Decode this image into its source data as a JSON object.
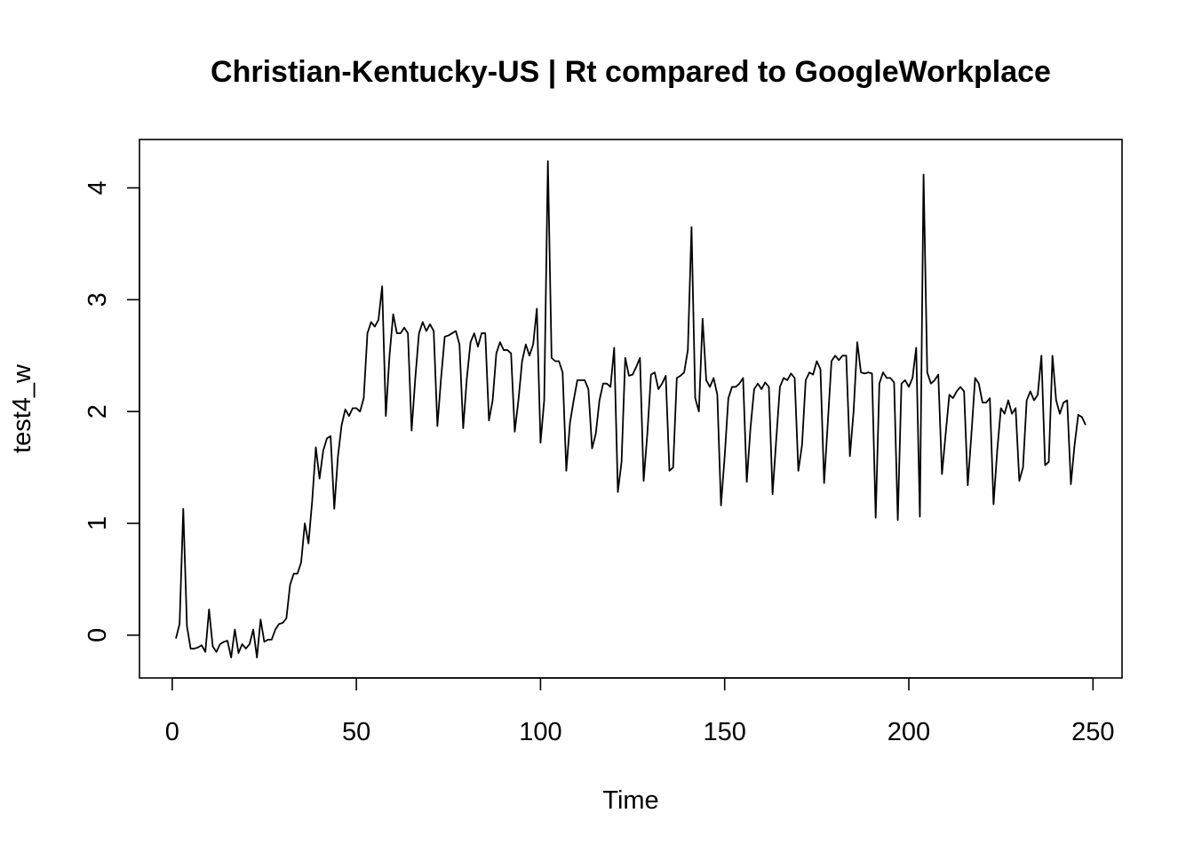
{
  "chart_data": {
    "type": "line",
    "title": "Christian-Kentucky-US | Rt compared to GoogleWorkplace",
    "xlabel": "Time",
    "ylabel": "test4_w",
    "xlim": [
      1,
      248
    ],
    "ylim": [
      -0.2,
      4.25
    ],
    "x_ticks": [
      0,
      50,
      100,
      150,
      200,
      250
    ],
    "y_ticks": [
      0,
      1,
      2,
      3,
      4
    ],
    "grid": false,
    "legend": "none",
    "line_color": "#000000",
    "series": [
      {
        "x_start": 1,
        "x_step": 1,
        "values": [
          -0.03,
          0.1,
          1.13,
          0.08,
          -0.12,
          -0.12,
          -0.11,
          -0.09,
          -0.15,
          0.23,
          -0.1,
          -0.15,
          -0.08,
          -0.06,
          -0.05,
          -0.2,
          0.05,
          -0.16,
          -0.08,
          -0.12,
          -0.08,
          0.05,
          -0.2,
          0.14,
          -0.06,
          -0.04,
          -0.04,
          0.05,
          0.1,
          0.11,
          0.15,
          0.45,
          0.55,
          0.55,
          0.65,
          1.0,
          0.82,
          1.2,
          1.68,
          1.4,
          1.65,
          1.76,
          1.78,
          1.13,
          1.6,
          1.88,
          2.02,
          1.96,
          2.03,
          2.03,
          2.0,
          2.12,
          2.7,
          2.8,
          2.76,
          2.82,
          3.12,
          1.96,
          2.5,
          2.87,
          2.7,
          2.7,
          2.75,
          2.7,
          1.83,
          2.3,
          2.7,
          2.8,
          2.72,
          2.78,
          2.72,
          1.87,
          2.3,
          2.67,
          2.68,
          2.7,
          2.72,
          2.6,
          1.85,
          2.3,
          2.62,
          2.7,
          2.58,
          2.7,
          2.7,
          1.92,
          2.1,
          2.52,
          2.62,
          2.55,
          2.55,
          2.52,
          1.82,
          2.1,
          2.45,
          2.6,
          2.5,
          2.6,
          2.92,
          1.72,
          2.1,
          4.24,
          2.48,
          2.45,
          2.45,
          2.35,
          1.47,
          1.9,
          2.1,
          2.28,
          2.28,
          2.28,
          2.2,
          1.67,
          1.8,
          2.1,
          2.25,
          2.25,
          2.22,
          2.57,
          1.28,
          1.55,
          2.48,
          2.32,
          2.33,
          2.4,
          2.48,
          1.38,
          1.8,
          2.33,
          2.35,
          2.2,
          2.25,
          2.32,
          1.47,
          1.5,
          2.3,
          2.32,
          2.35,
          2.55,
          3.65,
          2.12,
          2.0,
          2.83,
          2.28,
          2.22,
          2.3,
          2.15,
          1.16,
          1.6,
          2.12,
          2.22,
          2.22,
          2.25,
          2.3,
          1.37,
          1.85,
          2.2,
          2.25,
          2.2,
          2.26,
          2.22,
          1.26,
          1.75,
          2.22,
          2.3,
          2.28,
          2.34,
          2.3,
          1.47,
          1.7,
          2.28,
          2.35,
          2.33,
          2.45,
          2.38,
          1.36,
          1.9,
          2.45,
          2.5,
          2.46,
          2.5,
          2.5,
          1.6,
          2.0,
          2.62,
          2.35,
          2.34,
          2.35,
          2.34,
          1.05,
          2.25,
          2.35,
          2.3,
          2.3,
          2.26,
          1.03,
          2.25,
          2.28,
          2.22,
          2.3,
          2.57,
          1.06,
          4.12,
          2.35,
          2.25,
          2.28,
          2.33,
          1.44,
          1.8,
          2.15,
          2.12,
          2.18,
          2.22,
          2.18,
          1.34,
          1.8,
          2.3,
          2.25,
          2.08,
          2.08,
          2.12,
          1.17,
          1.65,
          2.03,
          1.98,
          2.1,
          1.98,
          2.03,
          1.38,
          1.5,
          2.1,
          2.18,
          2.1,
          2.15,
          2.5,
          1.52,
          1.55,
          2.5,
          2.1,
          1.98,
          2.08,
          2.1,
          1.35,
          1.7,
          1.97,
          1.95,
          1.88
        ]
      }
    ]
  }
}
